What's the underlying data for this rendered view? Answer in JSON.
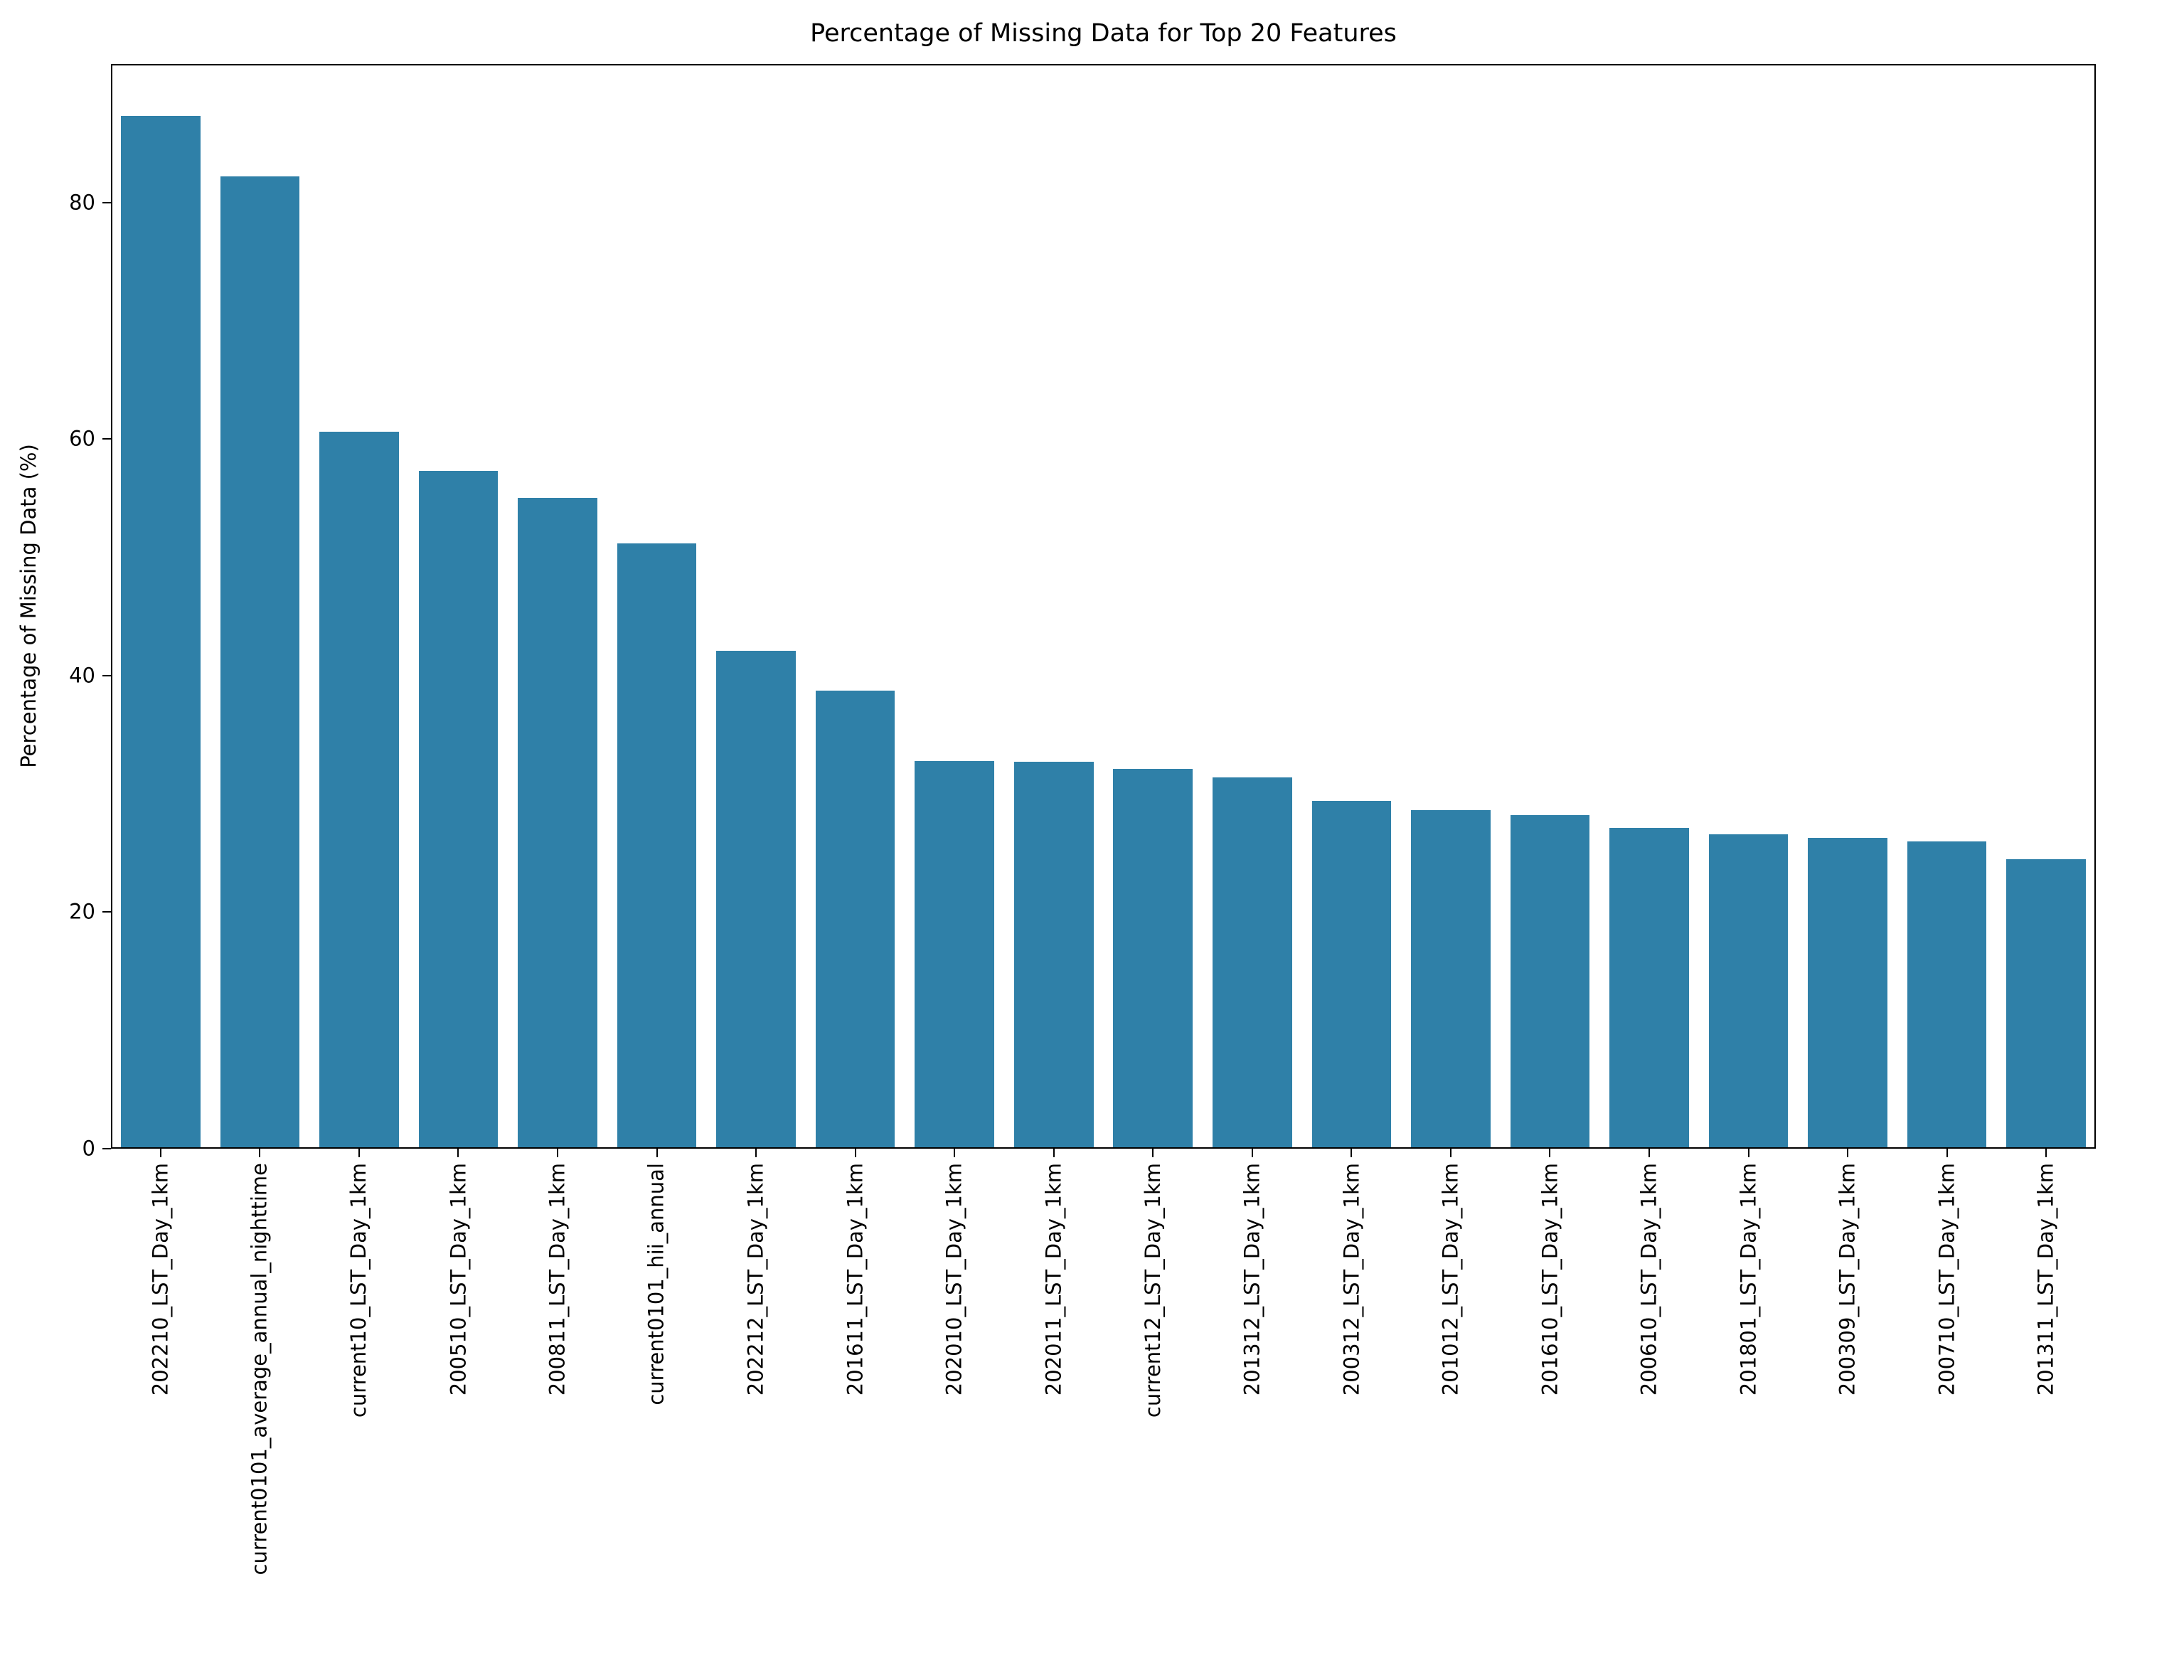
{
  "chart_data": {
    "type": "bar",
    "title": "Percentage of Missing Data for Top 20 Features",
    "xlabel": "",
    "ylabel": "Percentage of Missing Data (%)",
    "categories": [
      "202210_LST_Day_1km",
      "current0101_average_annual_nighttime",
      "current10_LST_Day_1km",
      "200510_LST_Day_1km",
      "200811_LST_Day_1km",
      "current0101_hii_annual",
      "202212_LST_Day_1km",
      "201611_LST_Day_1km",
      "202010_LST_Day_1km",
      "202011_LST_Day_1km",
      "current12_LST_Day_1km",
      "201312_LST_Day_1km",
      "200312_LST_Day_1km",
      "201012_LST_Day_1km",
      "201610_LST_Day_1km",
      "200610_LST_Day_1km",
      "201801_LST_Day_1km",
      "200309_LST_Day_1km",
      "200710_LST_Day_1km",
      "201311_LST_Day_1km"
    ],
    "values": [
      87.3,
      82.2,
      60.6,
      57.3,
      55.0,
      51.2,
      42.1,
      38.7,
      32.8,
      32.7,
      32.1,
      31.4,
      29.4,
      28.6,
      28.2,
      27.1,
      26.6,
      26.3,
      26.0,
      24.5
    ],
    "yticks": [
      0,
      20,
      40,
      60,
      80
    ],
    "ylim": [
      0,
      91.7
    ],
    "grid": false,
    "legend": null,
    "xtick_rotation_deg": 90,
    "bar_width_fraction": 0.8,
    "bar_color": "#2f80a8",
    "axis_color": "#000000",
    "background_color": "#ffffff"
  }
}
